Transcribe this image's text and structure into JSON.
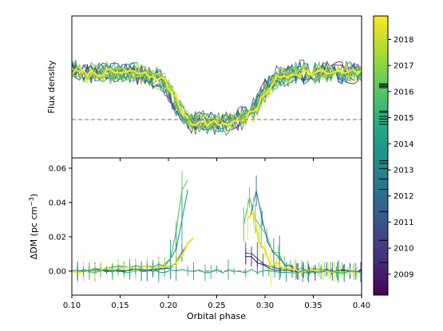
{
  "chart_data": [
    {
      "type": "line",
      "panel": "top",
      "title": "",
      "xlabel": "",
      "ylabel": "Flux density",
      "xlim": [
        0.1,
        0.4
      ],
      "ylim": [
        0.0,
        1.0
      ],
      "y_ticks_labeled": false,
      "x_ticks": [
        0.1,
        0.15,
        0.2,
        0.25,
        0.3,
        0.35,
        0.4
      ],
      "reference_line": {
        "y": 0.27,
        "style": "dashed",
        "color": "#7f7f7f"
      },
      "eclipse_profile": {
        "x": [
          0.1,
          0.17,
          0.195,
          0.205,
          0.215,
          0.225,
          0.26,
          0.275,
          0.29,
          0.3,
          0.31,
          0.33,
          0.4
        ],
        "y": [
          0.6,
          0.6,
          0.55,
          0.45,
          0.32,
          0.25,
          0.24,
          0.27,
          0.33,
          0.45,
          0.55,
          0.6,
          0.6
        ]
      },
      "series_count": 18,
      "colormap": "viridis"
    },
    {
      "type": "line",
      "panel": "bottom",
      "title": "",
      "xlabel": "Orbital phase",
      "ylabel": "ΔDM (pc cm",
      "ylabel_exp": "−3",
      "ylabel_end": ")",
      "xlim": [
        0.1,
        0.4
      ],
      "ylim": [
        -0.014,
        0.066
      ],
      "x_ticks": [
        0.1,
        0.15,
        0.2,
        0.25,
        0.3,
        0.35,
        0.4
      ],
      "x_tick_labels": [
        "0.10",
        "0.15",
        "0.20",
        "0.25",
        "0.30",
        "0.35",
        "0.40"
      ],
      "y_ticks": [
        0.0,
        0.02,
        0.04,
        0.06
      ],
      "y_tick_labels": [
        "0.00",
        "0.02",
        "0.04",
        "0.06"
      ],
      "reference_line": {
        "y": 0.0,
        "x_range": [
          0.225,
          0.28
        ],
        "style": "dashed",
        "color": "#7f7f7f"
      },
      "series": [
        {
          "year": 2016.0,
          "x": [
            0.1,
            0.19,
            0.205,
            0.212,
            0.218,
            0.222
          ],
          "y": [
            0.0,
            0.0,
            0.012,
            0.04,
            0.057,
            0.047
          ]
        },
        {
          "year": 2014.0,
          "x": [
            0.1,
            0.2,
            0.212,
            0.218,
            0.224
          ],
          "y": [
            0.0,
            0.004,
            0.018,
            0.05,
            0.034
          ]
        },
        {
          "year": 2012.0,
          "x": [
            0.1,
            0.2,
            0.212,
            0.222
          ],
          "y": [
            0.0,
            0.001,
            0.008,
            0.02
          ]
        },
        {
          "year": 2010.0,
          "x": [
            0.1,
            0.195,
            0.205,
            0.212
          ],
          "y": [
            0.0,
            0.001,
            0.003,
            0.006
          ]
        },
        {
          "year": 2018.5,
          "x": [
            0.1,
            0.205,
            0.215,
            0.222,
            0.228
          ],
          "y": [
            0.0,
            0.003,
            0.01,
            0.016,
            0.025
          ]
        },
        {
          "year": 2016.0,
          "x": [
            0.278,
            0.284,
            0.29,
            0.3,
            0.312,
            0.33,
            0.4
          ],
          "y": [
            0.027,
            0.04,
            0.033,
            0.02,
            0.01,
            0.001,
            0.0
          ]
        },
        {
          "year": 2012.5,
          "x": [
            0.285,
            0.29,
            0.296,
            0.305,
            0.32,
            0.34,
            0.4
          ],
          "y": [
            0.032,
            0.047,
            0.03,
            0.012,
            0.003,
            0.0,
            0.0
          ]
        },
        {
          "year": 2011.0,
          "x": [
            0.28,
            0.288,
            0.298,
            0.31,
            0.33,
            0.4
          ],
          "y": [
            0.01,
            0.007,
            0.004,
            0.002,
            0.0,
            0.0
          ]
        },
        {
          "year": 2009.0,
          "x": [
            0.28,
            0.29,
            0.3,
            0.312,
            0.33,
            0.4
          ],
          "y": [
            0.008,
            0.005,
            0.003,
            0.001,
            0.0,
            0.0
          ]
        },
        {
          "year": 2018.5,
          "x": [
            0.282,
            0.287,
            0.291,
            0.296,
            0.305,
            0.32,
            0.34,
            0.4
          ],
          "y": [
            0.03,
            0.036,
            0.02,
            0.015,
            0.006,
            0.002,
            0.0,
            0.0
          ]
        },
        {
          "year": 2014.5,
          "x": [
            0.1,
            0.19,
            0.4
          ],
          "y": [
            0.0,
            0.0,
            0.0
          ]
        }
      ]
    }
  ],
  "colorbar": {
    "colormap": "viridis",
    "range": [
      2008.2,
      2018.9
    ],
    "ticks": [
      2009,
      2010,
      2011,
      2012,
      2013,
      2014,
      2015,
      2016,
      2017,
      2018
    ],
    "tick_labels": [
      "2009",
      "2010",
      "2011",
      "2012",
      "2013",
      "2014",
      "2015",
      "2016",
      "2017",
      "2018"
    ],
    "observation_marks": [
      2009.45,
      2010.3,
      2011.4,
      2012.25,
      2012.65,
      2013.05,
      2013.25,
      2013.35,
      2014.75,
      2014.85,
      2014.95,
      2015.05,
      2015.2,
      2015.25,
      2016.15,
      2016.2,
      2016.25,
      2016.3
    ]
  }
}
